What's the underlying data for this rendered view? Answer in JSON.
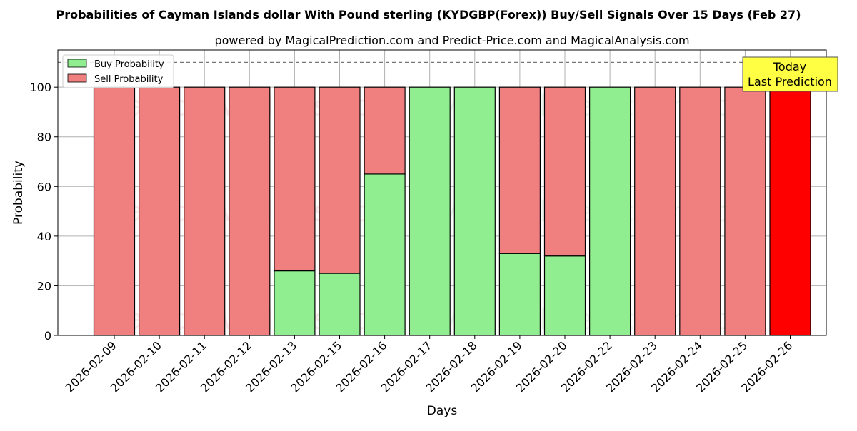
{
  "chart_data": {
    "type": "bar",
    "stacked": true,
    "title": "Probabilities of Cayman Islands dollar With Pound sterling (KYDGBP(Forex)) Buy/Sell Signals Over 15 Days (Feb 27)",
    "subtitle": "powered by MagicalPrediction.com and Predict-Price.com and MagicalAnalysis.com",
    "xlabel": "Days",
    "ylabel": "Probability",
    "ylim": [
      0,
      115
    ],
    "yticks": [
      0,
      20,
      40,
      60,
      80,
      100
    ],
    "grid": true,
    "legend_placement": "top-left",
    "reference_line": 110,
    "categories": [
      "2026-02-09",
      "2026-02-10",
      "2026-02-11",
      "2026-02-12",
      "2026-02-13",
      "2026-02-15",
      "2026-02-16",
      "2026-02-17",
      "2026-02-18",
      "2026-02-19",
      "2026-02-20",
      "2026-02-22",
      "2026-02-23",
      "2026-02-24",
      "2026-02-25",
      "2026-02-26"
    ],
    "series": [
      {
        "name": "Buy Probability",
        "color": "#90ee90",
        "values": [
          0,
          0,
          0,
          0,
          26,
          25,
          65,
          100,
          100,
          33,
          32,
          100,
          0,
          0,
          0,
          0
        ]
      },
      {
        "name": "Sell Probability",
        "color": "#f08080",
        "values": [
          100,
          100,
          100,
          100,
          74,
          75,
          35,
          0,
          0,
          67,
          68,
          0,
          100,
          100,
          100,
          100
        ]
      }
    ],
    "highlight": {
      "index": 15,
      "color": "#ff0000"
    },
    "annotation": {
      "line1": "Today",
      "line2": "Last Prediction",
      "background": "#ffff44"
    },
    "watermarks": [
      "MagicalAnalysis.com",
      "MagicalPrediction.com"
    ]
  }
}
